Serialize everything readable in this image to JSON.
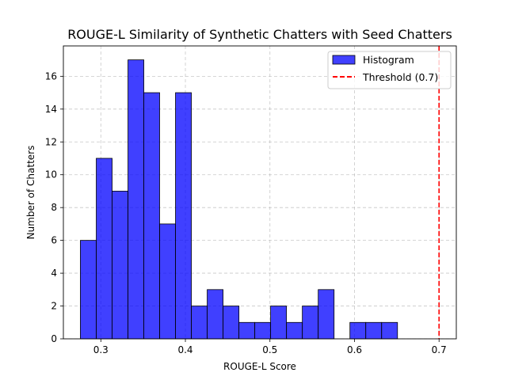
{
  "chart_data": {
    "type": "bar",
    "title": "ROUGE-L Similarity of Synthetic Chatters with Seed Chatters",
    "xlabel": "ROUGE-L Score",
    "ylabel": "Number of Chatters",
    "xlim": [
      0.2557,
      0.7204
    ],
    "ylim": [
      0,
      17.85
    ],
    "xticks": [
      0.3,
      0.4,
      0.5,
      0.6,
      0.7
    ],
    "xtick_labels": [
      "0.3",
      "0.4",
      "0.5",
      "0.6",
      "0.7"
    ],
    "yticks": [
      0,
      2,
      4,
      6,
      8,
      10,
      12,
      14,
      16
    ],
    "ytick_labels": [
      "0",
      "2",
      "4",
      "6",
      "8",
      "10",
      "12",
      "14",
      "16"
    ],
    "grid": true,
    "legend_position": "top-right",
    "bin_width": 0.01875,
    "bins": [
      {
        "x0": 0.2758,
        "count": 6
      },
      {
        "x0": 0.2946,
        "count": 11
      },
      {
        "x0": 0.3133,
        "count": 9
      },
      {
        "x0": 0.3321,
        "count": 17
      },
      {
        "x0": 0.3508,
        "count": 15
      },
      {
        "x0": 0.3696,
        "count": 7
      },
      {
        "x0": 0.3883,
        "count": 15
      },
      {
        "x0": 0.4071,
        "count": 2
      },
      {
        "x0": 0.4258,
        "count": 3
      },
      {
        "x0": 0.4446,
        "count": 2
      },
      {
        "x0": 0.4633,
        "count": 1
      },
      {
        "x0": 0.4821,
        "count": 1
      },
      {
        "x0": 0.5008,
        "count": 2
      },
      {
        "x0": 0.5196,
        "count": 1
      },
      {
        "x0": 0.5383,
        "count": 2
      },
      {
        "x0": 0.5571,
        "count": 3
      },
      {
        "x0": 0.5758,
        "count": 0
      },
      {
        "x0": 0.5946,
        "count": 1
      },
      {
        "x0": 0.6133,
        "count": 1
      },
      {
        "x0": 0.6321,
        "count": 1
      }
    ],
    "series": [
      {
        "name": "Histogram",
        "color": "#0000ff"
      }
    ],
    "threshold": {
      "value": 0.7,
      "label": "Threshold (0.7)",
      "color": "#ff0000"
    }
  }
}
